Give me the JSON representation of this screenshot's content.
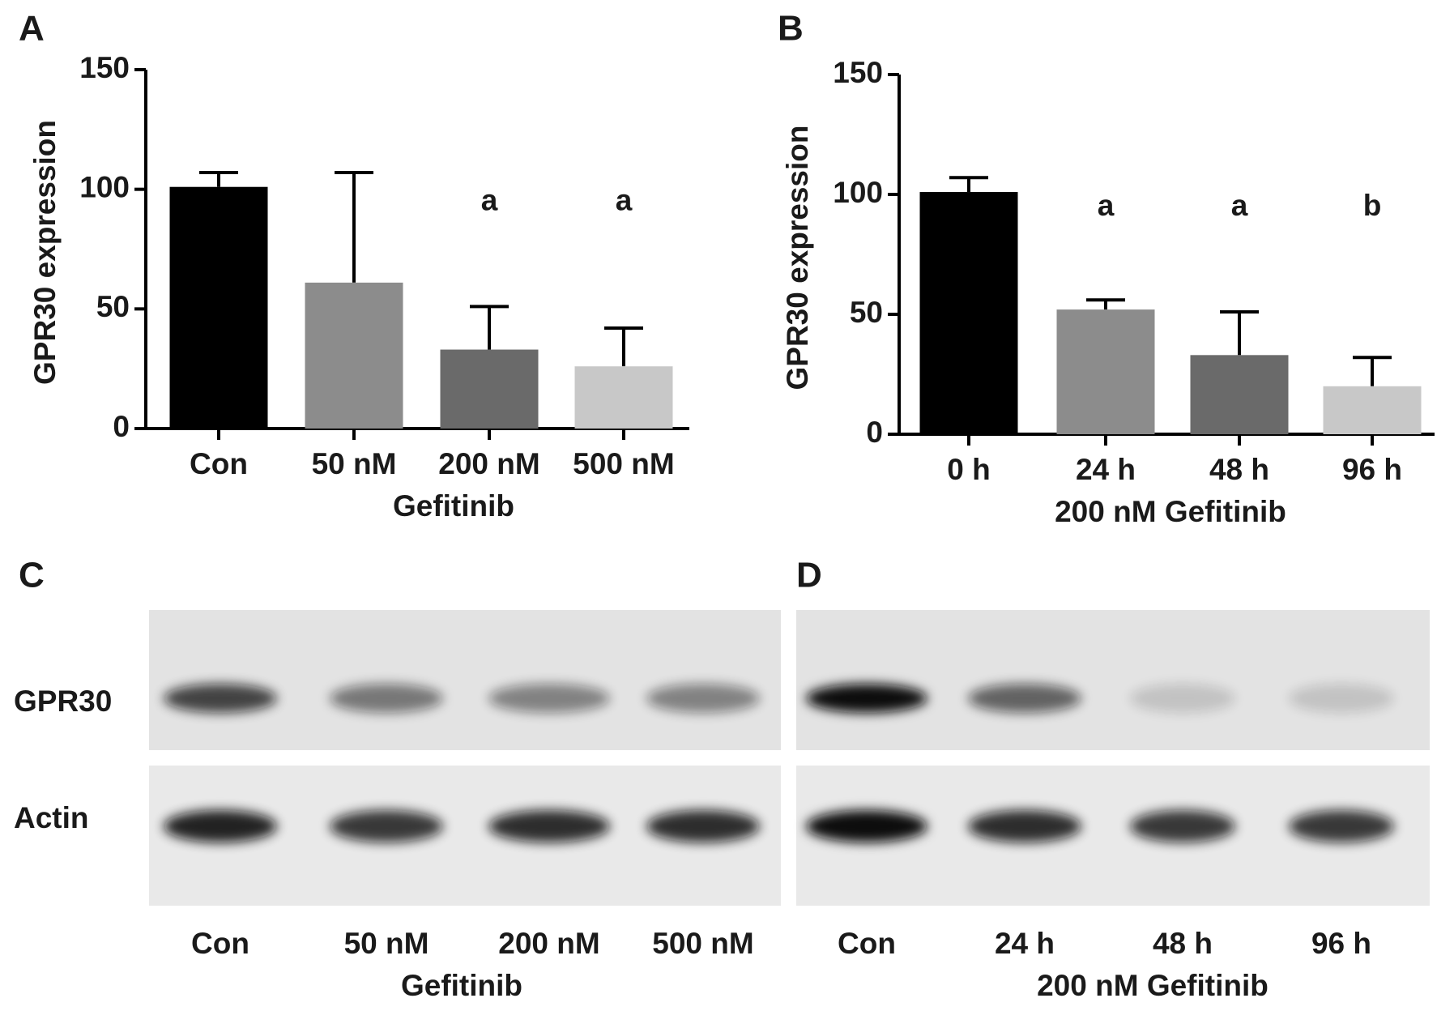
{
  "chart_data": [
    {
      "type": "bar",
      "panel_label": "A",
      "ylabel": "GPR30 expression",
      "xlabel": "Gefitinib",
      "categories": [
        "Con",
        "50 nM",
        "200 nM",
        "500 nM"
      ],
      "values": [
        101,
        61,
        33,
        26
      ],
      "errors": [
        6,
        46,
        18,
        16
      ],
      "colors": [
        "#000000",
        "#8c8c8c",
        "#6a6a6a",
        "#c8c8c8"
      ],
      "annotations": [
        null,
        null,
        "a",
        "a"
      ],
      "ylim": [
        0,
        150
      ],
      "yticks": [
        0,
        50,
        100,
        150
      ]
    },
    {
      "type": "bar",
      "panel_label": "B",
      "ylabel": "GPR30 expression",
      "xlabel": "200 nM Gefitinib",
      "categories": [
        "0 h",
        "24 h",
        "48 h",
        "96 h"
      ],
      "values": [
        101,
        52,
        33,
        20
      ],
      "errors": [
        6,
        4,
        18,
        12
      ],
      "colors": [
        "#000000",
        "#8c8c8c",
        "#6a6a6a",
        "#c8c8c8"
      ],
      "annotations": [
        null,
        "a",
        "a",
        "b"
      ],
      "ylim": [
        0,
        150
      ],
      "yticks": [
        0,
        50,
        100,
        150
      ]
    }
  ],
  "blots": [
    {
      "panel_label": "C",
      "rows": [
        "GPR30",
        "Actin"
      ],
      "lanes": [
        "Con",
        "50 nM",
        "200 nM",
        "500 nM"
      ],
      "xlabel": "Gefitinib"
    },
    {
      "panel_label": "D",
      "lanes": [
        "Con",
        "24 h",
        "48 h",
        "96 h"
      ],
      "xlabel": "200 nM Gefitinib"
    }
  ]
}
